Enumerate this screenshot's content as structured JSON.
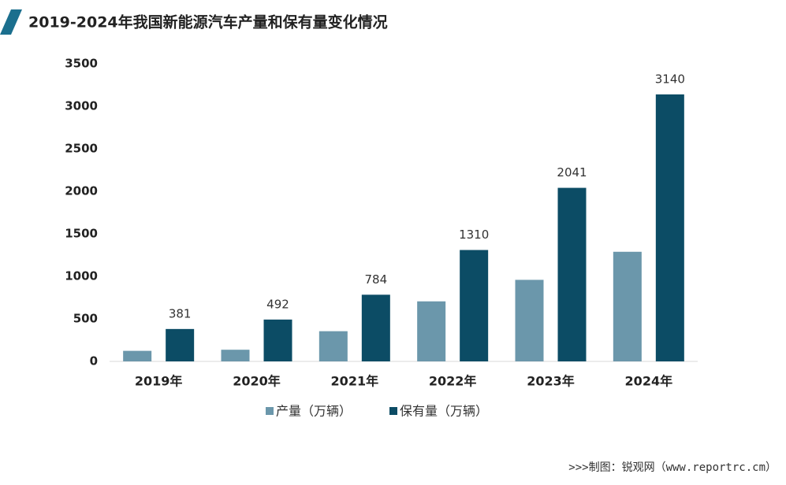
{
  "chart_data": {
    "type": "bar",
    "title": "2019-2024年我国新能源汽车产量和保有量变化情况",
    "categories": [
      "2019年",
      "2020年",
      "2021年",
      "2022年",
      "2023年",
      "2024年"
    ],
    "series": [
      {
        "name": "产量（万辆）",
        "color": "#6b97ab",
        "values": [
          124,
          137,
          355,
          706,
          959,
          1289
        ],
        "show_labels": false
      },
      {
        "name": "保有量（万辆）",
        "color": "#0c4c65",
        "values": [
          381,
          492,
          784,
          1310,
          2041,
          3140
        ],
        "show_labels": true
      }
    ],
    "ylim": [
      0,
      3500
    ],
    "yticks": [
      0,
      500,
      1000,
      1500,
      2000,
      2500,
      3000,
      3500
    ],
    "grid": false,
    "legend": "bottom",
    "source": ">>>制图：锐观网（www.reportrc.cm）"
  }
}
